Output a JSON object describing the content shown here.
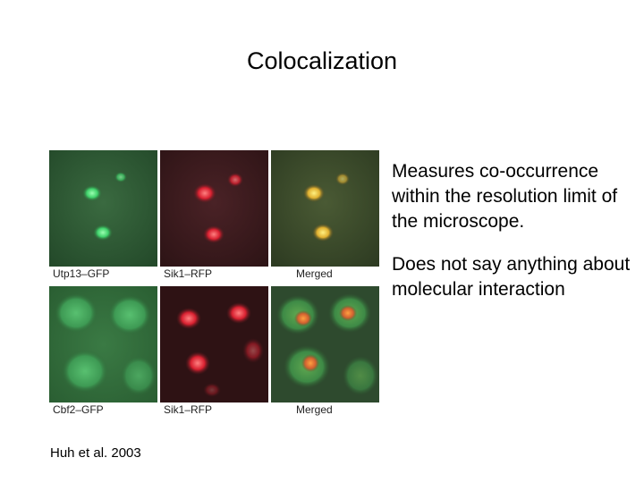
{
  "slide": {
    "title": "Colocalization",
    "bullets": [
      "Measures co-occurrence within the resolution limit of the microscope.",
      "Does not say anything about molecular interaction"
    ],
    "citation": "Huh et al. 2003"
  },
  "figure": {
    "rows": [
      {
        "captions": [
          "Utp13–GFP",
          "Sik1–RFP",
          "Merged"
        ]
      },
      {
        "captions": [
          "Cbf2–GFP",
          "Sik1–RFP",
          "Merged"
        ]
      }
    ],
    "colors": {
      "gfp_background": "#2f5a34",
      "gfp_signal": "#4fe07a",
      "rfp_background": "#3a1a1c",
      "rfp_signal": "#e0303a",
      "merged_background": "#3c5030",
      "merged_signal": "#e8c83a"
    }
  }
}
